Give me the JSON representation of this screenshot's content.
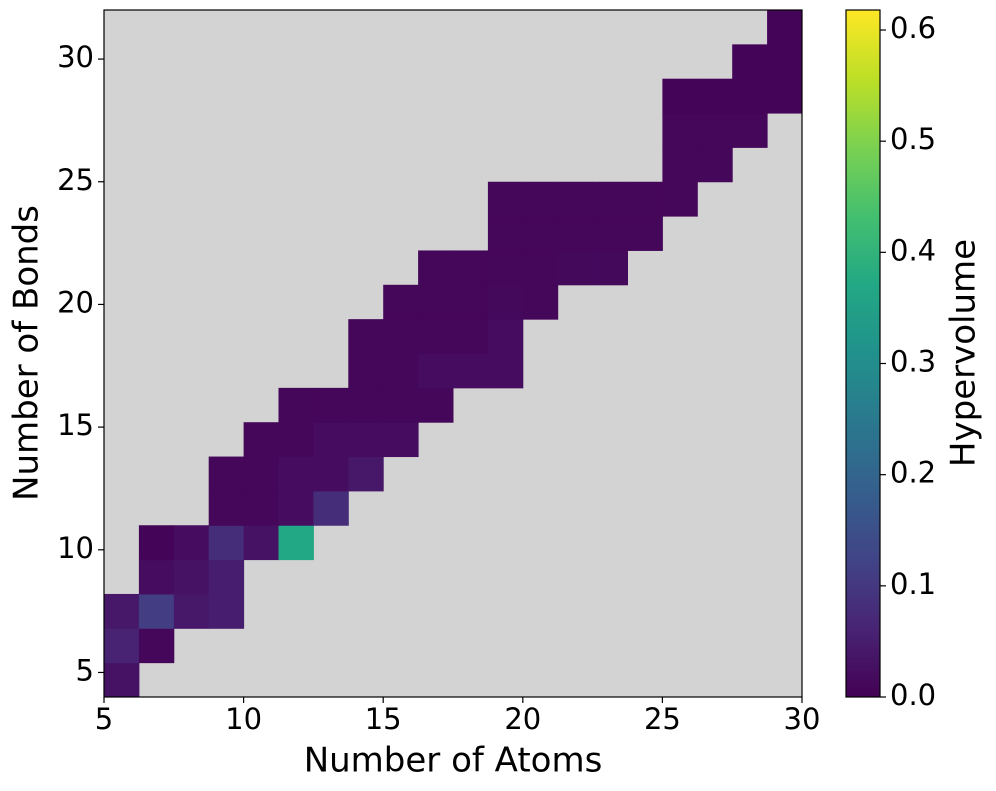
{
  "chart_data": {
    "type": "heatmap",
    "xlabel": "Number of Atoms",
    "ylabel": "Number of Bonds",
    "colorbar_label": "Hypervolume",
    "colormap": "viridis",
    "background": "#d3d3d3",
    "xlim": [
      5,
      30
    ],
    "ylim": [
      4,
      32
    ],
    "xticks": [
      5,
      10,
      15,
      20,
      25,
      30
    ],
    "yticks": [
      5,
      10,
      15,
      20,
      25,
      30
    ],
    "clim": [
      0,
      0.618
    ],
    "cticks": [
      {
        "value": 0,
        "label": "0.0"
      },
      0.1,
      0.2,
      0.3,
      0.4,
      0.5,
      0.6
    ],
    "z": [
      [
        0.03,
        null,
        null,
        null,
        null,
        null,
        null,
        null,
        null,
        null,
        null,
        null,
        null,
        null,
        null,
        null,
        null,
        null,
        null,
        null
      ],
      [
        0.06,
        0.01,
        null,
        null,
        null,
        null,
        null,
        null,
        null,
        null,
        null,
        null,
        null,
        null,
        null,
        null,
        null,
        null,
        null,
        null
      ],
      [
        0.04,
        0.11,
        0.04,
        0.05,
        null,
        null,
        null,
        null,
        null,
        null,
        null,
        null,
        null,
        null,
        null,
        null,
        null,
        null,
        null,
        null
      ],
      [
        null,
        0.02,
        0.03,
        0.05,
        null,
        null,
        null,
        null,
        null,
        null,
        null,
        null,
        null,
        null,
        null,
        null,
        null,
        null,
        null,
        null
      ],
      [
        null,
        0.005,
        0.02,
        0.08,
        0.03,
        0.37,
        null,
        null,
        null,
        null,
        null,
        null,
        null,
        null,
        null,
        null,
        null,
        null,
        null,
        null
      ],
      [
        null,
        null,
        null,
        0.01,
        0.01,
        0.02,
        0.08,
        null,
        null,
        null,
        null,
        null,
        null,
        null,
        null,
        null,
        null,
        null,
        null,
        null
      ],
      [
        null,
        null,
        null,
        0.01,
        0.01,
        0.02,
        0.02,
        0.04,
        null,
        null,
        null,
        null,
        null,
        null,
        null,
        null,
        null,
        null,
        null,
        null
      ],
      [
        null,
        null,
        null,
        null,
        0.01,
        0.01,
        0.02,
        0.02,
        0.02,
        null,
        null,
        null,
        null,
        null,
        null,
        null,
        null,
        null,
        null,
        null
      ],
      [
        null,
        null,
        null,
        null,
        null,
        0.01,
        0.01,
        0.01,
        0.01,
        0.01,
        null,
        null,
        null,
        null,
        null,
        null,
        null,
        null,
        null,
        null
      ],
      [
        null,
        null,
        null,
        null,
        null,
        null,
        null,
        0.01,
        0.01,
        0.02,
        0.02,
        0.02,
        null,
        null,
        null,
        null,
        null,
        null,
        null,
        null
      ],
      [
        null,
        null,
        null,
        null,
        null,
        null,
        null,
        0.01,
        0.01,
        0.01,
        0.01,
        0.02,
        null,
        null,
        null,
        null,
        null,
        null,
        null,
        null
      ],
      [
        null,
        null,
        null,
        null,
        null,
        null,
        null,
        null,
        0.01,
        0.01,
        0.01,
        0.015,
        0.01,
        null,
        null,
        null,
        null,
        null,
        null,
        null
      ],
      [
        null,
        null,
        null,
        null,
        null,
        null,
        null,
        null,
        null,
        0.01,
        0.01,
        0.01,
        0.01,
        0.015,
        0.015,
        null,
        null,
        null,
        null,
        null
      ],
      [
        null,
        null,
        null,
        null,
        null,
        null,
        null,
        null,
        null,
        null,
        null,
        0.01,
        0.01,
        0.01,
        0.01,
        0.01,
        null,
        null,
        null,
        null
      ],
      [
        null,
        null,
        null,
        null,
        null,
        null,
        null,
        null,
        null,
        null,
        null,
        0.01,
        0.01,
        0.01,
        0.01,
        0.01,
        0.01,
        null,
        null,
        null
      ],
      [
        null,
        null,
        null,
        null,
        null,
        null,
        null,
        null,
        null,
        null,
        null,
        null,
        null,
        null,
        null,
        null,
        0.01,
        0.01,
        null,
        null
      ],
      [
        null,
        null,
        null,
        null,
        null,
        null,
        null,
        null,
        null,
        null,
        null,
        null,
        null,
        null,
        null,
        null,
        0.01,
        0.01,
        0.01,
        null
      ],
      [
        null,
        null,
        null,
        null,
        null,
        null,
        null,
        null,
        null,
        null,
        null,
        null,
        null,
        null,
        null,
        null,
        0.005,
        0.005,
        0.005,
        0.005
      ],
      [
        null,
        null,
        null,
        null,
        null,
        null,
        null,
        null,
        null,
        null,
        null,
        null,
        null,
        null,
        null,
        null,
        null,
        null,
        0.005,
        0.005
      ],
      [
        null,
        null,
        null,
        null,
        null,
        null,
        null,
        null,
        null,
        null,
        null,
        null,
        null,
        null,
        null,
        null,
        null,
        null,
        null,
        0.005
      ]
    ]
  }
}
